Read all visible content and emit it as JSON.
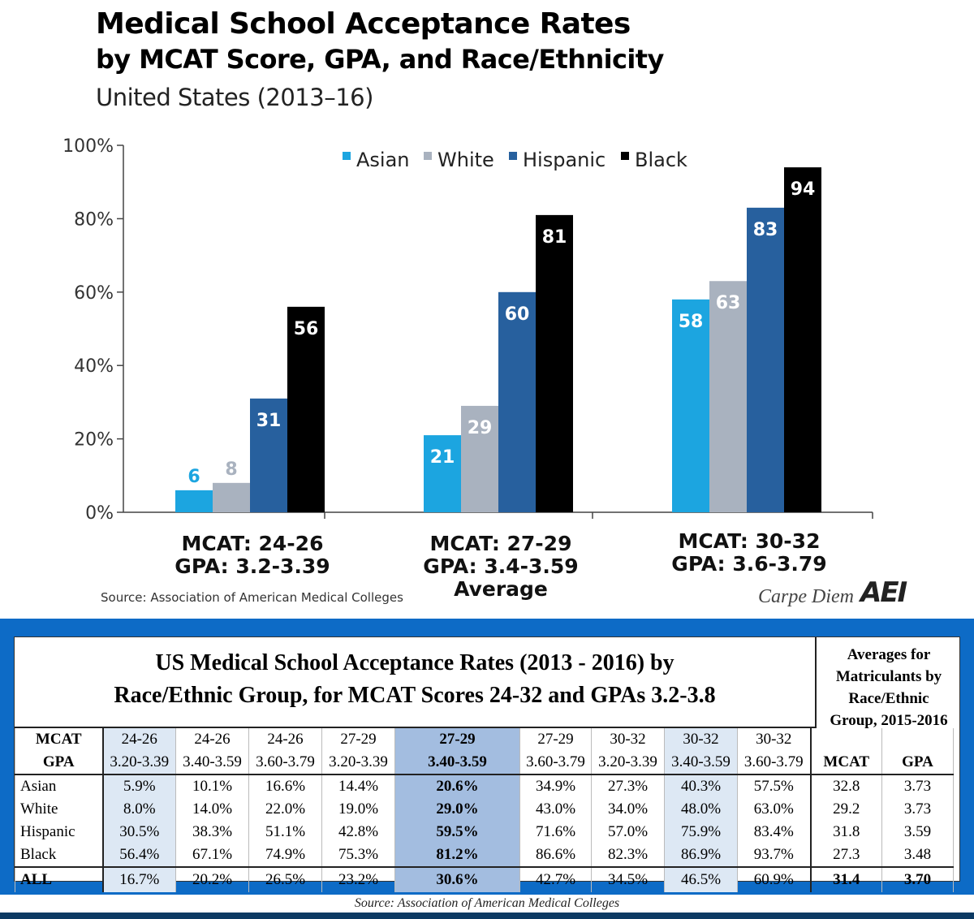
{
  "chart_data": {
    "type": "bar",
    "title": "Medical School Acceptance Rates",
    "title_line2": "by MCAT Score, GPA, and Race/Ethnicity",
    "subtitle": "United States (2013–16)",
    "categories": [
      {
        "line1": "MCAT: 24-26",
        "line2": "GPA: 3.2-3.39",
        "line3": ""
      },
      {
        "line1": "MCAT: 27-29",
        "line2": "GPA: 3.4-3.59",
        "line3": "Average"
      },
      {
        "line1": "MCAT: 30-32",
        "line2": "GPA: 3.6-3.79",
        "line3": ""
      }
    ],
    "series": [
      {
        "name": "Asian",
        "color": "#1ca5e0",
        "values": [
          6,
          21,
          58
        ]
      },
      {
        "name": "White",
        "color": "#a9b2bf",
        "values": [
          8,
          29,
          63
        ]
      },
      {
        "name": "Hispanic",
        "color": "#27609e",
        "values": [
          31,
          60,
          83
        ]
      },
      {
        "name": "Black",
        "color": "#000000",
        "values": [
          56,
          81,
          94
        ]
      }
    ],
    "ylim": [
      0,
      100
    ],
    "yticks": [
      "0%",
      "20%",
      "40%",
      "60%",
      "80%",
      "100%"
    ],
    "xlabel": "",
    "ylabel": "",
    "legend": "top",
    "grid": false
  },
  "chart_source": "Source: Association of American Medical Colleges",
  "brand": {
    "name": "Carpe Diem",
    "logo": "AEI"
  },
  "table": {
    "title_line1": "US Medical School Acceptance Rates (2013 - 2016) by",
    "title_line2": "Race/Ethnic Group, for MCAT Scores 24-32 and GPAs 3.2-3.8",
    "side_title": [
      "Averages for",
      "Matriculants by",
      "Race/Ethnic",
      "Group, 2015-2016"
    ],
    "mcat_label": "MCAT",
    "gpa_label": "GPA",
    "mcat": [
      "24-26",
      "24-26",
      "24-26",
      "27-29",
      "27-29",
      "27-29",
      "30-32",
      "30-32",
      "30-32"
    ],
    "gpa": [
      "3.20-3.39",
      "3.40-3.59",
      "3.60-3.79",
      "3.20-3.39",
      "3.40-3.59",
      "3.60-3.79",
      "3.20-3.39",
      "3.40-3.59",
      "3.60-3.79"
    ],
    "avg_headers": [
      "MCAT",
      "GPA"
    ],
    "rows": [
      {
        "label": "Asian",
        "values": [
          "5.9%",
          "10.1%",
          "16.6%",
          "14.4%",
          "20.6%",
          "34.9%",
          "27.3%",
          "40.3%",
          "57.5%"
        ],
        "avg": [
          "32.8",
          "3.73"
        ]
      },
      {
        "label": "White",
        "values": [
          "8.0%",
          "14.0%",
          "22.0%",
          "19.0%",
          "29.0%",
          "43.0%",
          "34.0%",
          "48.0%",
          "63.0%"
        ],
        "avg": [
          "29.2",
          "3.73"
        ]
      },
      {
        "label": "Hispanic",
        "values": [
          "30.5%",
          "38.3%",
          "51.1%",
          "42.8%",
          "59.5%",
          "71.6%",
          "57.0%",
          "75.9%",
          "83.4%"
        ],
        "avg": [
          "31.8",
          "3.59"
        ]
      },
      {
        "label": "Black",
        "values": [
          "56.4%",
          "67.1%",
          "74.9%",
          "75.3%",
          "81.2%",
          "86.6%",
          "82.3%",
          "86.9%",
          "93.7%"
        ],
        "avg": [
          "27.3",
          "3.48"
        ]
      }
    ],
    "all_row": {
      "label": "ALL",
      "values": [
        "16.7%",
        "20.2%",
        "26.5%",
        "23.2%",
        "30.6%",
        "42.7%",
        "34.5%",
        "46.5%",
        "60.9%"
      ],
      "avg": [
        "31.4",
        "3.70"
      ]
    },
    "source": "Source: Association of American Medical Colleges"
  }
}
